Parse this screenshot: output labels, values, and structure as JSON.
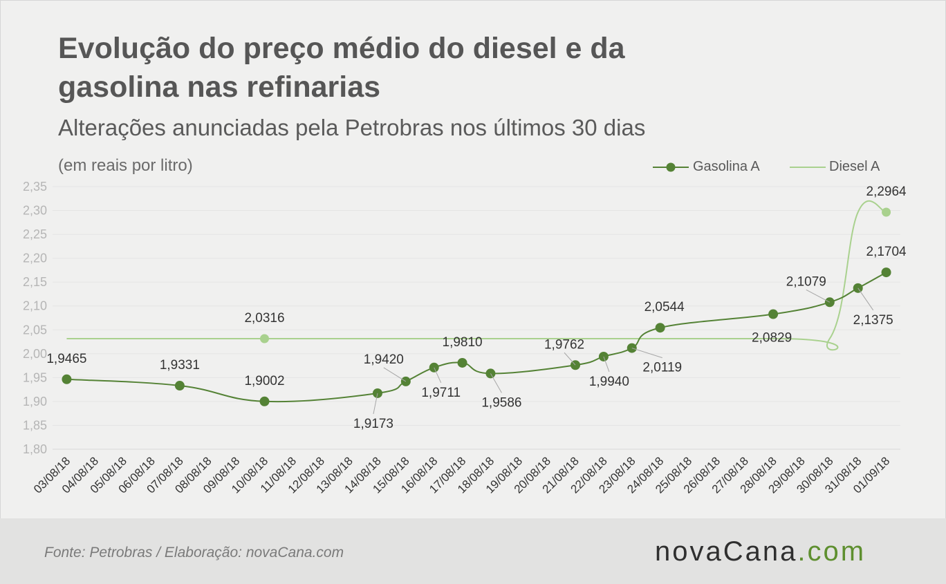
{
  "header": {
    "title": "Evolução do preço médio do diesel e da gasolina nas refinarias",
    "subtitle": "Alterações anunciadas pela Petrobras nos últimos 30 dias",
    "unit": "(em reais por litro)"
  },
  "legend": {
    "gasolina": "Gasolina A",
    "diesel": "Diesel A"
  },
  "footer": {
    "source": "Fonte:  Petrobras  / Elaboração:  novaCana.com",
    "logo_main": "novaCana",
    "logo_suffix": ".com"
  },
  "colors": {
    "gasolina": "#548235",
    "diesel": "#a9d18e",
    "grid": "#e4e4e4",
    "tick": "#b5b5b5",
    "label": "#333333"
  },
  "chart_data": {
    "type": "line",
    "categories": [
      "03/08/18",
      "04/08/18",
      "05/08/18",
      "06/08/18",
      "07/08/18",
      "08/08/18",
      "09/08/18",
      "10/08/18",
      "11/08/18",
      "12/08/18",
      "13/08/18",
      "14/08/18",
      "15/08/18",
      "16/08/18",
      "17/08/18",
      "18/08/18",
      "19/08/18",
      "20/08/18",
      "21/08/18",
      "22/08/18",
      "23/08/18",
      "24/08/18",
      "25/08/18",
      "26/08/18",
      "27/08/18",
      "28/08/18",
      "29/08/18",
      "30/08/18",
      "31/08/18",
      "01/09/18"
    ],
    "ylim": [
      1.8,
      2.35
    ],
    "yticks": [
      "1,80",
      "1,85",
      "1,90",
      "1,95",
      "2,00",
      "2,05",
      "2,10",
      "2,15",
      "2,20",
      "2,25",
      "2,30",
      "2,35"
    ],
    "legend_position": "top-right",
    "grid": true,
    "series": [
      {
        "name": "Gasolina A",
        "marker": "circle",
        "points": [
          {
            "x": "03/08/18",
            "y": 1.9465,
            "label": "1,9465"
          },
          {
            "x": "07/08/18",
            "y": 1.9331,
            "label": "1,9331"
          },
          {
            "x": "10/08/18",
            "y": 1.9002,
            "label": "1,9002"
          },
          {
            "x": "14/08/18",
            "y": 1.9173,
            "label": "1,9173"
          },
          {
            "x": "15/08/18",
            "y": 1.942,
            "label": "1,9420"
          },
          {
            "x": "16/08/18",
            "y": 1.9711,
            "label": "1,9711"
          },
          {
            "x": "17/08/18",
            "y": 1.981,
            "label": "1,9810"
          },
          {
            "x": "18/08/18",
            "y": 1.9586,
            "label": "1,9586"
          },
          {
            "x": "21/08/18",
            "y": 1.9762,
            "label": "1,9762"
          },
          {
            "x": "22/08/18",
            "y": 1.994,
            "label": "1,9940"
          },
          {
            "x": "23/08/18",
            "y": 2.0119,
            "label": "2,0119"
          },
          {
            "x": "24/08/18",
            "y": 2.0544,
            "label": "2,0544"
          },
          {
            "x": "28/08/18",
            "y": 2.0829,
            "label": "2,0829"
          },
          {
            "x": "30/08/18",
            "y": 2.1079,
            "label": "2,1079"
          },
          {
            "x": "31/08/18",
            "y": 2.1375,
            "label": "2,1375"
          },
          {
            "x": "01/09/18",
            "y": 2.1704,
            "label": "2,1704"
          }
        ]
      },
      {
        "name": "Diesel A",
        "marker": "line",
        "points": [
          {
            "x": "03/08/18",
            "y": 2.0316
          },
          {
            "x": "10/08/18",
            "y": 2.0316,
            "label": "2,0316",
            "marker": true
          },
          {
            "x": "28/08/18",
            "y": 2.0316
          },
          {
            "x": "30/08/18",
            "y": 2.0316
          },
          {
            "x": "31/08/18",
            "y": 2.2964
          },
          {
            "x": "01/09/18",
            "y": 2.2964,
            "label": "2,2964",
            "marker": true
          }
        ]
      }
    ]
  }
}
